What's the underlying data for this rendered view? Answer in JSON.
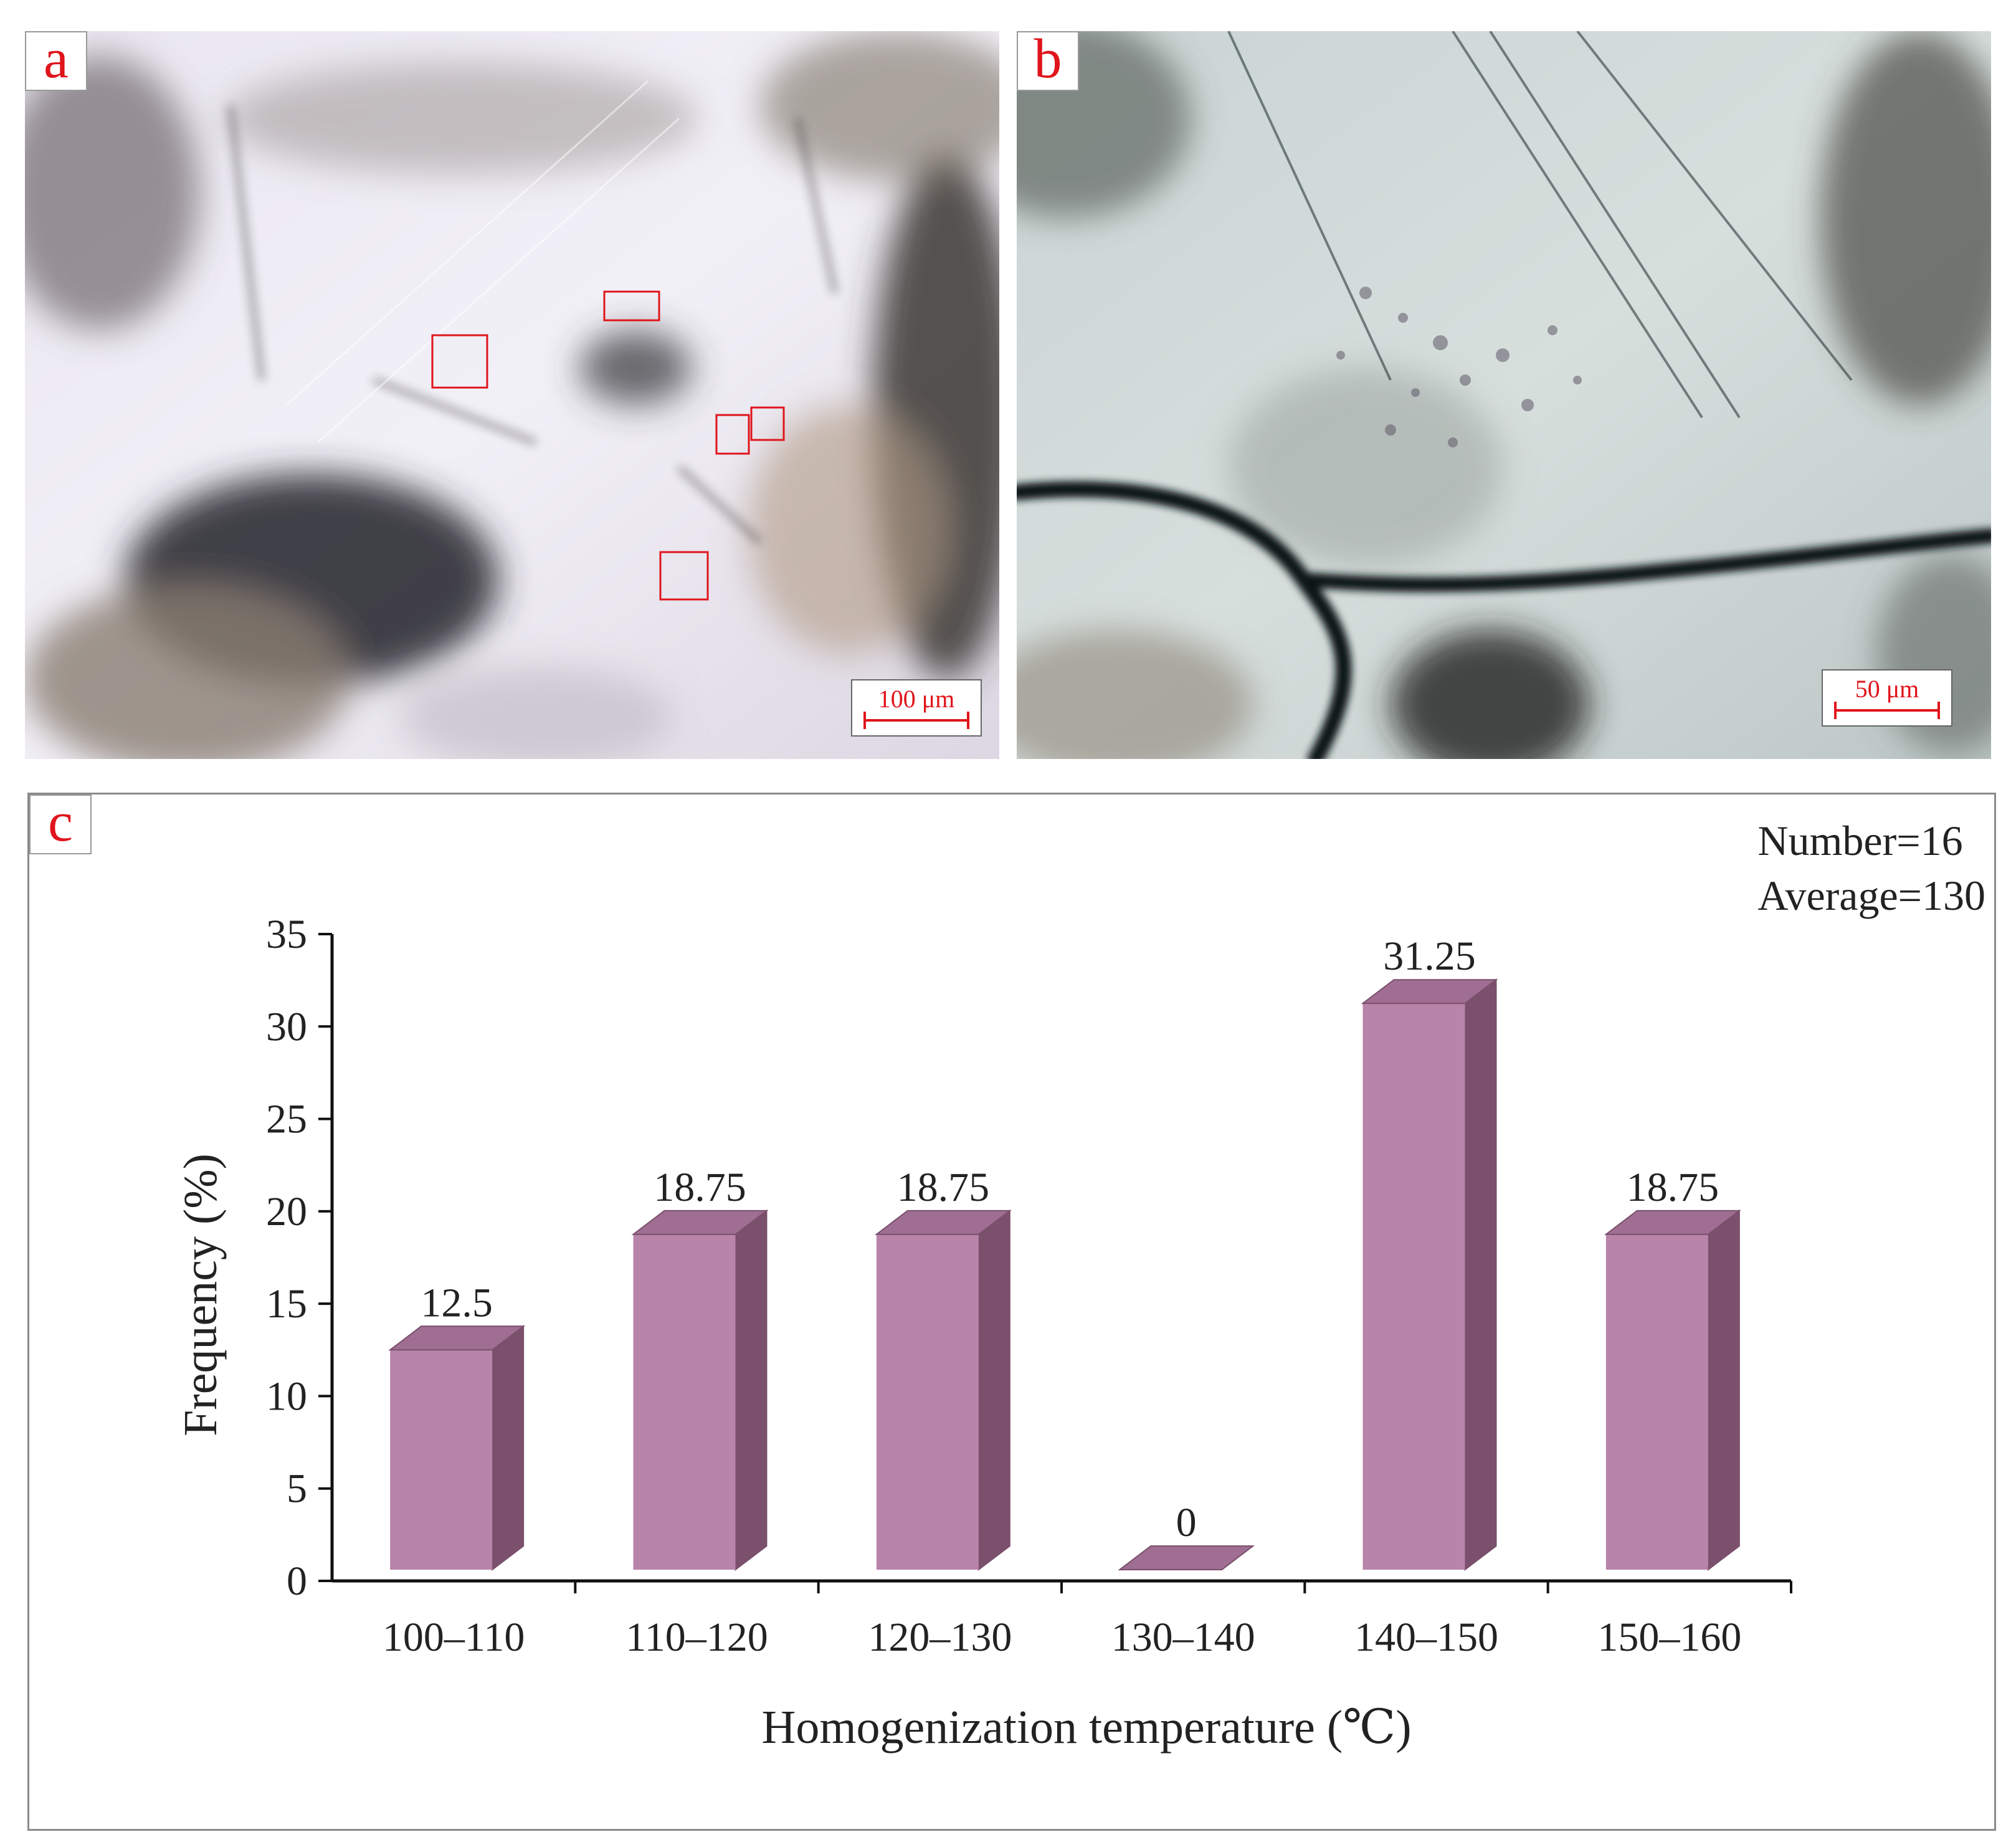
{
  "panels": {
    "a": {
      "letter": "a",
      "scale_label": "100 μm"
    },
    "b": {
      "letter": "b",
      "scale_label": "50 μm"
    },
    "c": {
      "letter": "c"
    }
  },
  "colors": {
    "bar_front": "#b884aa",
    "bar_side": "#7a506c",
    "bar_top": "#a06e92",
    "axis": "#111111",
    "panel_letter": "#e0141b"
  },
  "chart_data": {
    "type": "bar",
    "categories": [
      "100–110",
      "110–120",
      "120–130",
      "130–140",
      "140–150",
      "150–160"
    ],
    "values": [
      12.5,
      18.75,
      18.75,
      0,
      31.25,
      18.75
    ],
    "data_labels": [
      "12.5",
      "18.75",
      "18.75",
      "0",
      "31.25",
      "18.75"
    ],
    "xlabel": "Homogenization temperature (℃)",
    "ylabel": "Frequency (%)",
    "ylim": [
      0,
      35
    ],
    "yticks": [
      0,
      5,
      10,
      15,
      20,
      25,
      30,
      35
    ],
    "grid": false,
    "annotations": [
      "Number=16",
      "Average=130"
    ],
    "style": "3d-bar"
  }
}
